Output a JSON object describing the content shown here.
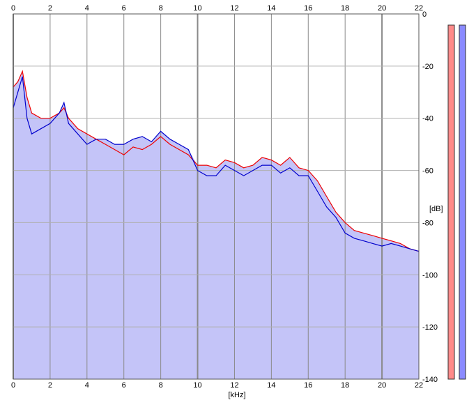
{
  "chart_data": {
    "type": "area",
    "title": "",
    "xlabel": "[kHz]",
    "ylabel": "[dB]",
    "xlim": [
      0,
      22
    ],
    "ylim": [
      -140,
      0
    ],
    "x_ticks": [
      "0",
      "2",
      "4",
      "6",
      "8",
      "10",
      "12",
      "14",
      "16",
      "18",
      "20",
      "22"
    ],
    "y_ticks": [
      "0",
      "-20",
      "-40",
      "-60",
      "-80",
      "-100",
      "-120",
      "-140"
    ],
    "grid": true,
    "colors": {
      "fill": "#c4c4f8",
      "red": "#ee0000",
      "blue": "#0000cc",
      "grid": "#8a8a8a",
      "meter_left": "#ff8a8a",
      "meter_right": "#8a8aff"
    },
    "series": [
      {
        "color": "red",
        "x": [
          0,
          0.25,
          0.5,
          0.75,
          1,
          1.5,
          2,
          2.5,
          2.75,
          3,
          3.5,
          4,
          4.5,
          5,
          5.5,
          6,
          6.5,
          7,
          7.5,
          8,
          8.5,
          9,
          9.5,
          10,
          10.5,
          11,
          11.5,
          12,
          12.5,
          13,
          13.5,
          14,
          14.5,
          15,
          15.5,
          16,
          16.5,
          17,
          17.5,
          18,
          18.5,
          19,
          19.5,
          20,
          20.5,
          21,
          21.5,
          22
        ],
        "y": [
          -28,
          -26,
          -22,
          -32,
          -38,
          -40,
          -40,
          -38,
          -36,
          -40,
          -44,
          -46,
          -48,
          -50,
          -52,
          -54,
          -51,
          -52,
          -50,
          -47,
          -50,
          -52,
          -54,
          -58,
          -58,
          -59,
          -56,
          -57,
          -59,
          -58,
          -55,
          -56,
          -58,
          -55,
          -59,
          -60,
          -64,
          -70,
          -76,
          -80,
          -83,
          -84,
          -85,
          -86,
          -87,
          -88,
          -90,
          -91
        ]
      },
      {
        "color": "blue",
        "x": [
          0,
          0.25,
          0.5,
          0.75,
          1,
          1.5,
          2,
          2.5,
          2.75,
          3,
          3.5,
          4,
          4.5,
          5,
          5.5,
          6,
          6.5,
          7,
          7.5,
          8,
          8.5,
          9,
          9.5,
          10,
          10.5,
          11,
          11.5,
          12,
          12.5,
          13,
          13.5,
          14,
          14.5,
          15,
          15.5,
          16,
          16.5,
          17,
          17.5,
          18,
          18.5,
          19,
          19.5,
          20,
          20.5,
          21,
          21.5,
          22
        ],
        "y": [
          -36,
          -30,
          -24,
          -40,
          -46,
          -44,
          -42,
          -38,
          -34,
          -42,
          -46,
          -50,
          -48,
          -48,
          -50,
          -50,
          -48,
          -47,
          -49,
          -45,
          -48,
          -50,
          -52,
          -60,
          -62,
          -62,
          -58,
          -60,
          -62,
          -60,
          -58,
          -58,
          -61,
          -59,
          -62,
          -62,
          -68,
          -74,
          -78,
          -84,
          -86,
          -87,
          -88,
          -89,
          -88,
          -89,
          -90,
          -91
        ]
      }
    ]
  }
}
